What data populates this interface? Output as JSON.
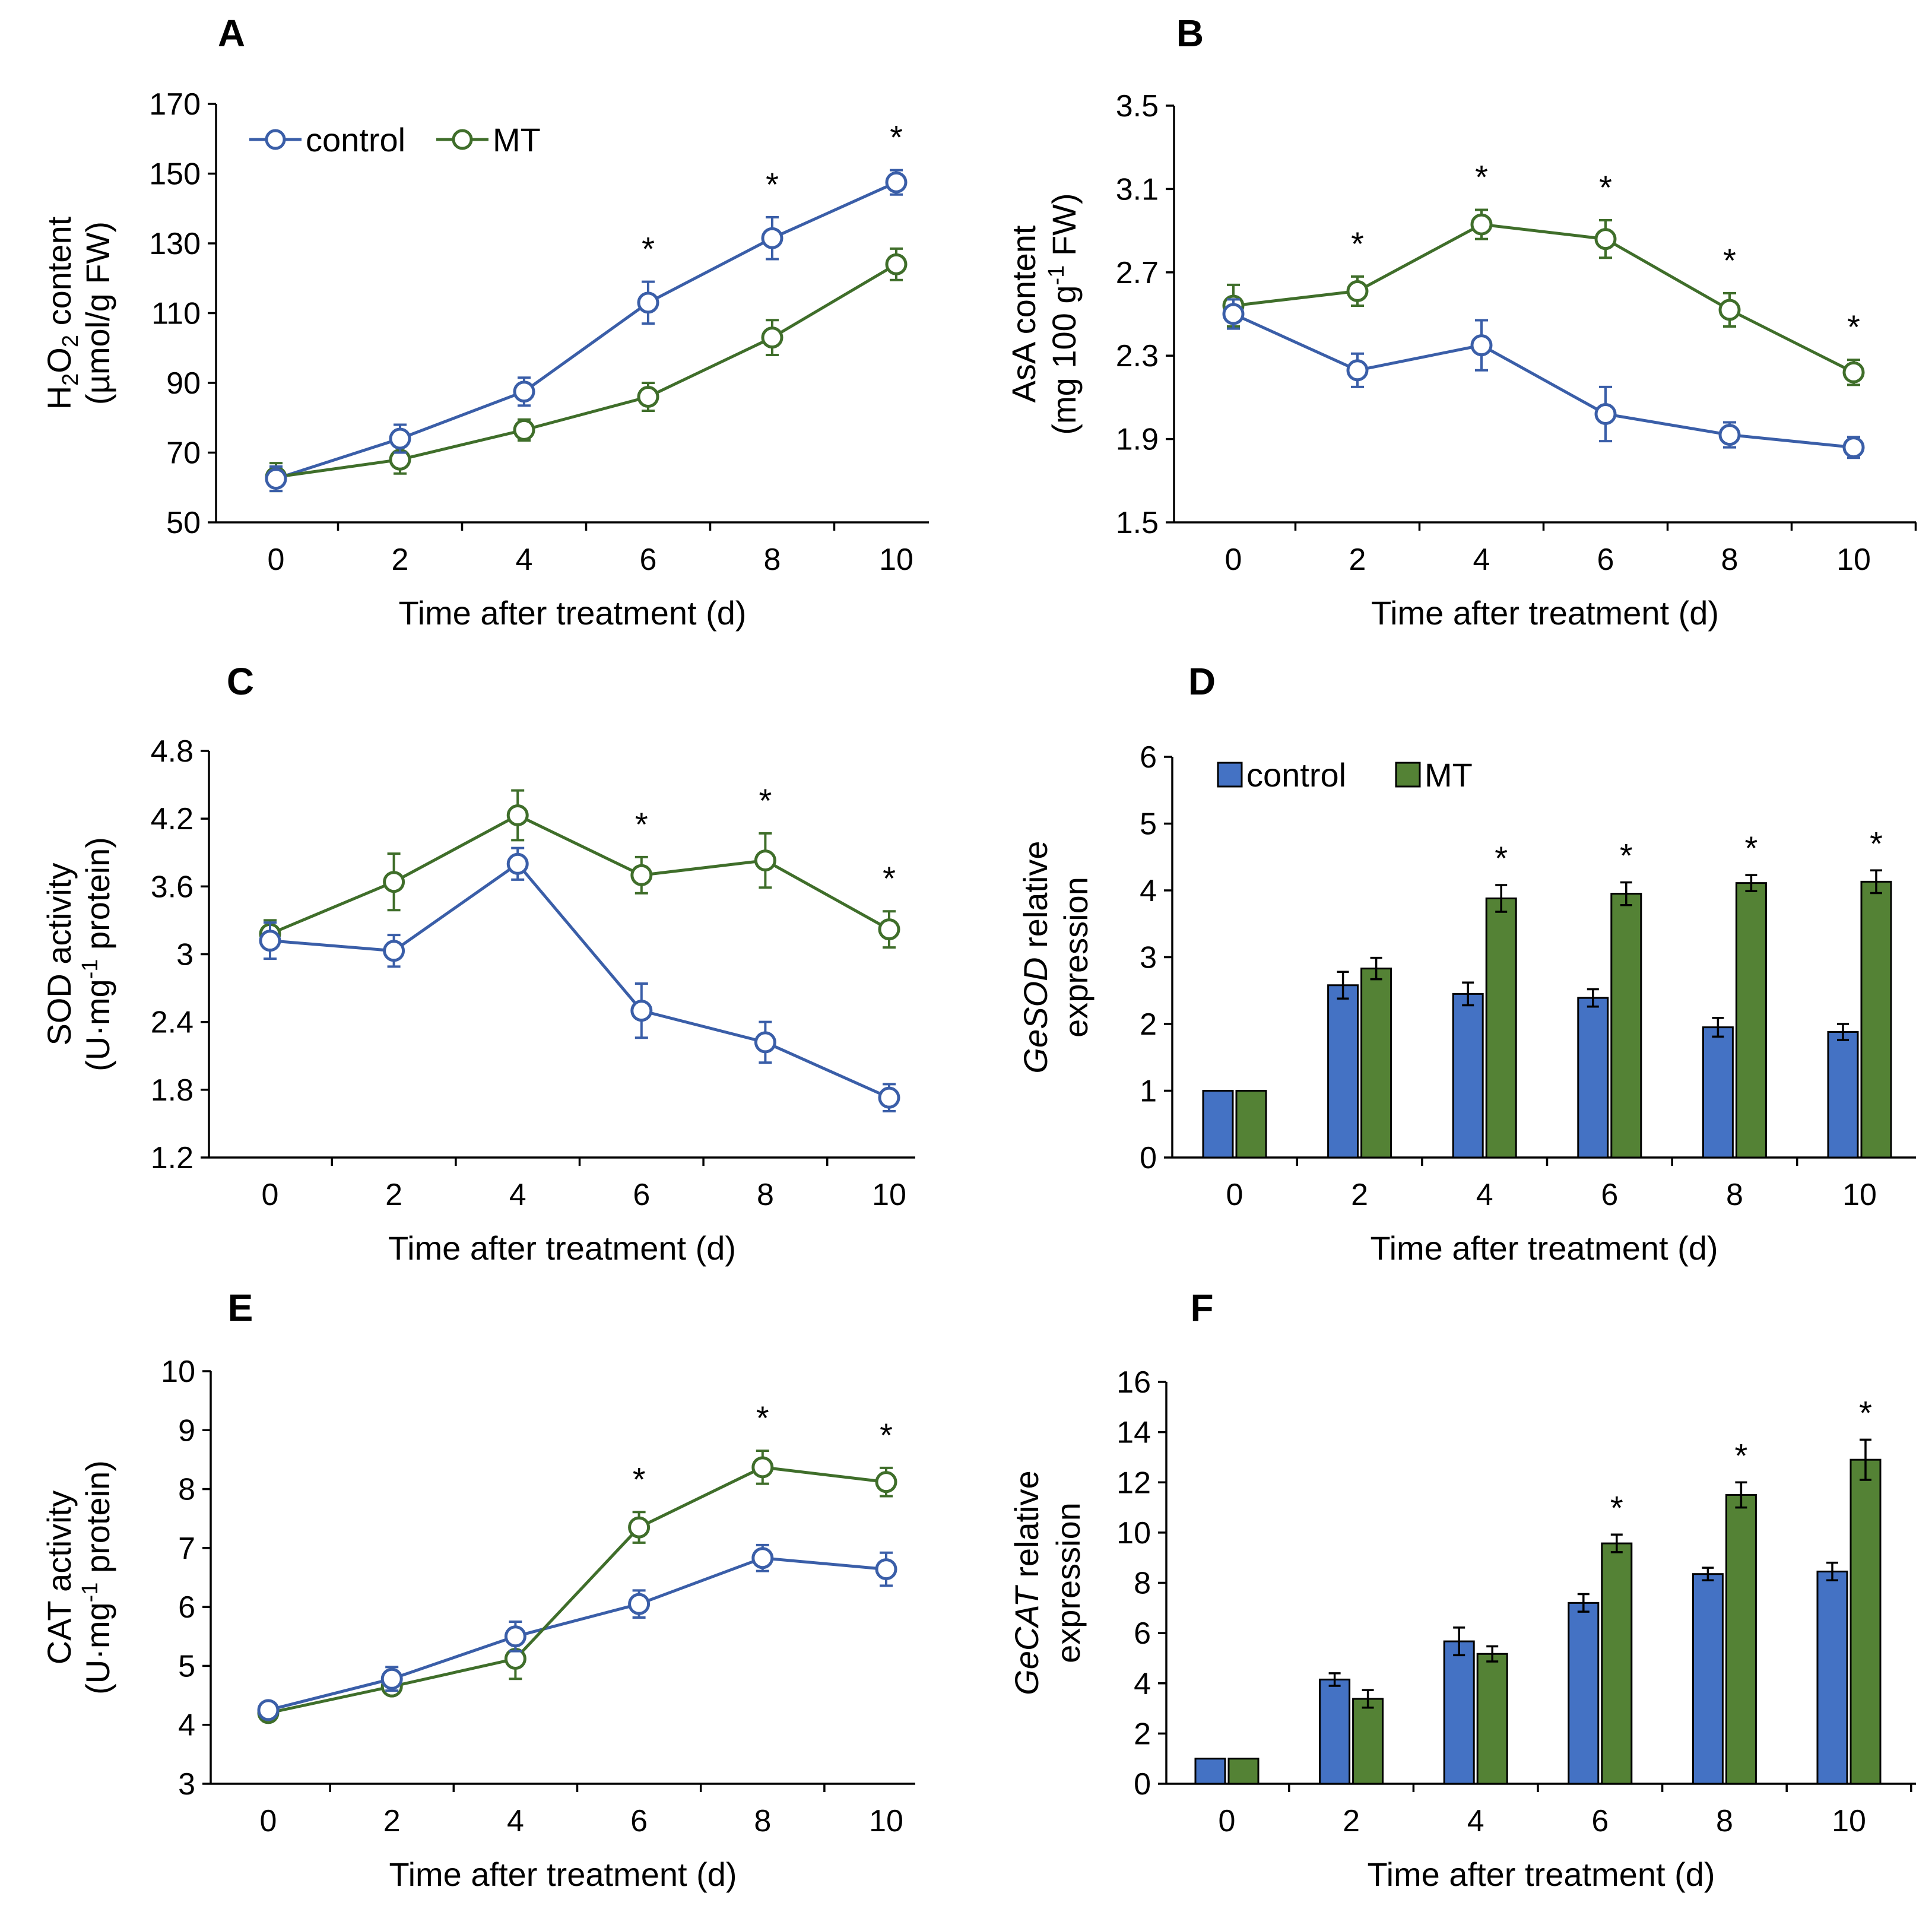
{
  "colors": {
    "control": "#3a5ea8",
    "mt": "#3f6e2a",
    "control_bar": "#4472c4",
    "mt_bar": "#548235"
  },
  "chart_data": [
    {
      "panel": "A",
      "type": "line",
      "title": "",
      "xlabel": "Time after treatment (d)",
      "ylabel_lines": [
        "H2O2 content",
        "(µmol/g FW)"
      ],
      "x": [
        0,
        2,
        4,
        6,
        8,
        10
      ],
      "xticks": [
        "0",
        "2",
        "4",
        "6",
        "8",
        "10"
      ],
      "yticks": [
        "50",
        "70",
        "90",
        "110",
        "130",
        "150",
        "170"
      ],
      "ylim": [
        50,
        170
      ],
      "legend": [
        "control",
        "MT"
      ],
      "legend_position": "top-left",
      "series": [
        {
          "name": "control",
          "values": [
            62.5,
            74,
            87.5,
            113,
            131.5,
            147.5
          ],
          "errors": [
            3.5,
            4,
            4,
            6,
            6,
            3.5
          ]
        },
        {
          "name": "MT",
          "values": [
            63,
            68,
            76.5,
            86,
            103,
            124
          ],
          "errors": [
            4,
            4,
            3,
            4,
            5,
            4.5
          ]
        }
      ],
      "significance_marks": [
        "",
        "",
        "",
        "*",
        "*",
        "*"
      ]
    },
    {
      "panel": "B",
      "type": "line",
      "title": "",
      "xlabel": "Time after treatment (d)",
      "ylabel_lines": [
        "AsA content",
        "(mg 100 g-1 FW)"
      ],
      "x": [
        0,
        2,
        4,
        6,
        8,
        10
      ],
      "xticks": [
        "0",
        "2",
        "4",
        "6",
        "8",
        "10"
      ],
      "yticks": [
        "1.5",
        "1.9",
        "2.3",
        "2.7",
        "3.1",
        "3.5"
      ],
      "ylim": [
        1.5,
        3.5
      ],
      "legend": [],
      "series": [
        {
          "name": "control",
          "values": [
            2.5,
            2.23,
            2.35,
            2.02,
            1.92,
            1.86
          ],
          "errors": [
            0.07,
            0.08,
            0.12,
            0.13,
            0.06,
            0.05
          ]
        },
        {
          "name": "MT",
          "values": [
            2.54,
            2.61,
            2.93,
            2.86,
            2.52,
            2.22
          ],
          "errors": [
            0.1,
            0.07,
            0.07,
            0.09,
            0.08,
            0.06
          ]
        }
      ],
      "significance_marks": [
        "",
        "*",
        "*",
        "*",
        "*",
        "*"
      ]
    },
    {
      "panel": "C",
      "type": "line",
      "title": "",
      "xlabel": "Time after treatment (d)",
      "ylabel_lines": [
        "SOD activity",
        "(U·mg-1 protein)"
      ],
      "x": [
        0,
        2,
        4,
        6,
        8,
        10
      ],
      "xticks": [
        "0",
        "2",
        "4",
        "6",
        "8",
        "10"
      ],
      "yticks": [
        "1.2",
        "1.8",
        "2.4",
        "3",
        "3.6",
        "4.2",
        "4.8"
      ],
      "ylim": [
        1.2,
        4.8
      ],
      "legend": [],
      "series": [
        {
          "name": "control",
          "values": [
            3.12,
            3.03,
            3.8,
            2.5,
            2.22,
            1.73
          ],
          "errors": [
            0.16,
            0.14,
            0.14,
            0.24,
            0.18,
            0.12
          ]
        },
        {
          "name": "MT",
          "values": [
            3.18,
            3.64,
            4.23,
            3.7,
            3.83,
            3.22
          ],
          "errors": [
            0.12,
            0.25,
            0.22,
            0.16,
            0.24,
            0.16
          ]
        }
      ],
      "significance_marks": [
        "",
        "",
        "",
        "*",
        "*",
        "*"
      ]
    },
    {
      "panel": "D",
      "type": "bar",
      "title": "",
      "xlabel": "Time after treatment (d)",
      "ylabel_italic": "GeSOD",
      "ylabel_rest": " relative",
      "ylabel_line2": "expression",
      "categories": [
        "0",
        "2",
        "4",
        "6",
        "8",
        "10"
      ],
      "yticks": [
        "0",
        "1",
        "2",
        "3",
        "4",
        "5",
        "6"
      ],
      "ylim": [
        0,
        6
      ],
      "legend": [
        "control",
        "MT"
      ],
      "legend_position": "top-left",
      "series": [
        {
          "name": "control",
          "values": [
            1,
            2.58,
            2.45,
            2.39,
            1.95,
            1.88
          ],
          "errors": [
            0,
            0.2,
            0.17,
            0.13,
            0.14,
            0.12
          ]
        },
        {
          "name": "MT",
          "values": [
            1,
            2.83,
            3.88,
            3.95,
            4.11,
            4.13
          ],
          "errors": [
            0,
            0.16,
            0.2,
            0.17,
            0.12,
            0.17
          ]
        }
      ],
      "significance_marks": [
        "",
        "",
        "*",
        "*",
        "*",
        "*"
      ]
    },
    {
      "panel": "E",
      "type": "line",
      "title": "",
      "xlabel": "Time after treatment (d)",
      "ylabel_lines": [
        "CAT activity",
        "(U·mg-1 protein)"
      ],
      "x": [
        0,
        2,
        4,
        6,
        8,
        10
      ],
      "xticks": [
        "0",
        "2",
        "4",
        "6",
        "8",
        "10"
      ],
      "yticks": [
        "3",
        "4",
        "5",
        "6",
        "7",
        "8",
        "9",
        "10"
      ],
      "ylim": [
        3,
        10
      ],
      "legend": [],
      "series": [
        {
          "name": "control",
          "values": [
            4.25,
            4.78,
            5.5,
            6.05,
            6.83,
            6.64
          ],
          "errors": [
            0.12,
            0.2,
            0.25,
            0.23,
            0.22,
            0.28
          ]
        },
        {
          "name": "MT",
          "values": [
            4.2,
            4.65,
            5.12,
            7.35,
            8.37,
            8.12
          ],
          "errors": [
            0.12,
            0.1,
            0.34,
            0.26,
            0.28,
            0.24
          ]
        }
      ],
      "significance_marks": [
        "",
        "",
        "",
        "*",
        "*",
        "*"
      ]
    },
    {
      "panel": "F",
      "type": "bar",
      "title": "",
      "xlabel": "Time after treatment (d)",
      "ylabel_italic": "GeCAT",
      "ylabel_rest": " relative",
      "ylabel_line2": "expression",
      "categories": [
        "0",
        "2",
        "4",
        "6",
        "8",
        "10"
      ],
      "yticks": [
        "0",
        "2",
        "4",
        "6",
        "8",
        "10",
        "12",
        "14",
        "16"
      ],
      "ylim": [
        0,
        16
      ],
      "legend": [],
      "series": [
        {
          "name": "control",
          "values": [
            1,
            4.15,
            5.67,
            7.2,
            8.35,
            8.45
          ],
          "errors": [
            0,
            0.25,
            0.55,
            0.35,
            0.25,
            0.35
          ]
        },
        {
          "name": "MT",
          "values": [
            1,
            3.38,
            5.17,
            9.57,
            11.5,
            12.9
          ],
          "errors": [
            0,
            0.35,
            0.3,
            0.35,
            0.5,
            0.8
          ]
        }
      ],
      "significance_marks": [
        "",
        "",
        "",
        "*",
        "*",
        "*"
      ]
    }
  ]
}
